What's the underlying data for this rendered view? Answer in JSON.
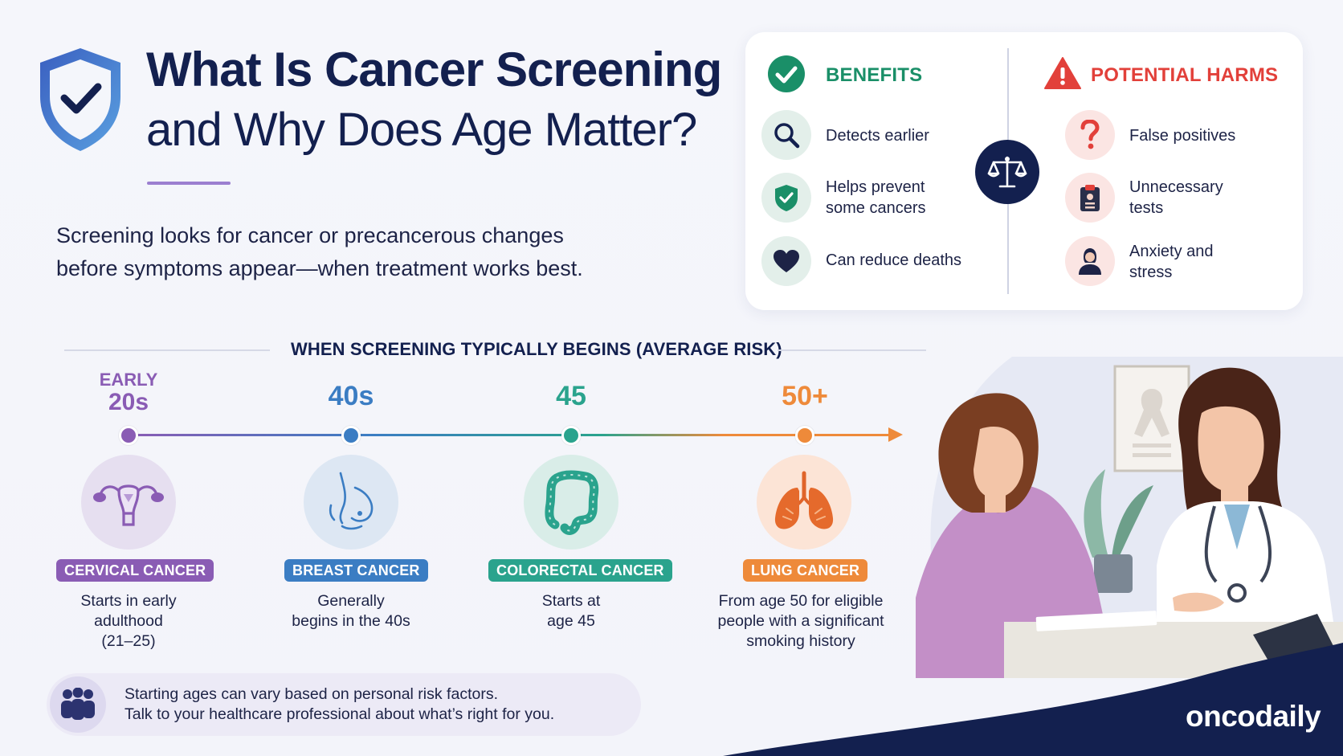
{
  "header": {
    "title_line1": "What Is Cancer Screening",
    "title_line2": "and Why Does Age Matter?",
    "intro_line1": "Screening looks for cancer or precancerous changes",
    "intro_line2": "before symptoms appear—when treatment works best."
  },
  "benefits": {
    "title": "BENEFITS",
    "items": [
      {
        "icon": "magnifier-icon",
        "line1": "Detects earlier",
        "line2": ""
      },
      {
        "icon": "shield-check-icon",
        "line1": "Helps prevent",
        "line2": "some cancers"
      },
      {
        "icon": "heart-icon",
        "line1": "Can reduce deaths",
        "line2": ""
      }
    ]
  },
  "harms": {
    "title": "POTENTIAL HARMS",
    "items": [
      {
        "icon": "question-icon",
        "line1": "False positives",
        "line2": ""
      },
      {
        "icon": "clipboard-icon",
        "line1": "Unnecessary",
        "line2": "tests"
      },
      {
        "icon": "person-icon",
        "line1": "Anxiety and",
        "line2": "stress"
      }
    ]
  },
  "timeline": {
    "heading": "WHEN SCREENING TYPICALLY BEGINS (AVERAGE RISK)",
    "stages": [
      {
        "age_small": "EARLY",
        "age": "20s",
        "label": "CERVICAL CANCER",
        "desc": [
          "Starts in early",
          "adulthood",
          "(21–25)"
        ],
        "color": "#8a5cb4",
        "organ": "uterus-icon"
      },
      {
        "age_small": "",
        "age": "40s",
        "label": "BREAST CANCER",
        "desc": [
          "Generally",
          "begins in the 40s"
        ],
        "color": "#3b7dc3",
        "organ": "breast-icon"
      },
      {
        "age_small": "",
        "age": "45",
        "label": "COLORECTAL CANCER",
        "desc": [
          "Starts at",
          "age 45"
        ],
        "color": "#2aa38d",
        "organ": "colon-icon"
      },
      {
        "age_small": "",
        "age": "50+",
        "label": "LUNG CANCER",
        "desc": [
          "From age 50 for eligible",
          "people with a significant",
          "smoking history"
        ],
        "color": "#ee8a3a",
        "organ": "lungs-icon"
      }
    ]
  },
  "note": {
    "line1": "Starting ages can vary based on personal risk factors.",
    "line2": "Talk to your healthcare professional about what’s right for you."
  },
  "brand": "oncodaily",
  "colors": {
    "navy": "#13204f",
    "benefit_green": "#1a8f68",
    "harm_red": "#e2403a",
    "accent_purple": "#9b7fd0"
  }
}
